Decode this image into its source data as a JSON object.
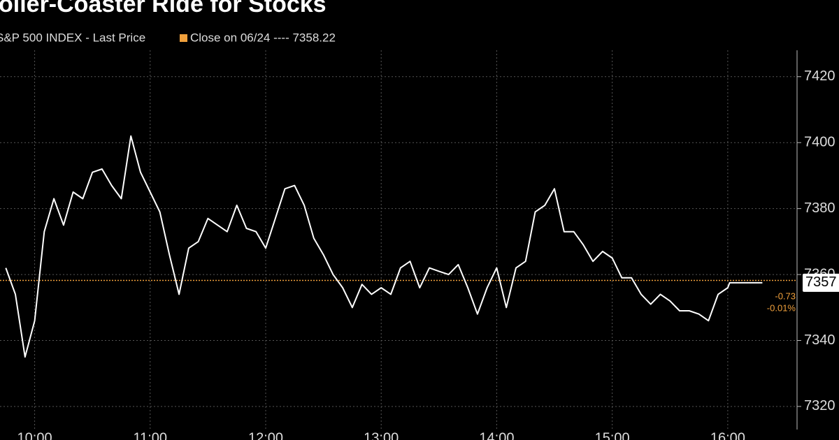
{
  "chart_data": {
    "type": "line",
    "title": "oller-Coaster Ride for Stocks",
    "x": [
      585,
      590,
      595,
      600,
      605,
      610,
      615,
      620,
      625,
      630,
      635,
      640,
      645,
      650,
      655,
      660,
      665,
      670,
      675,
      680,
      685,
      690,
      695,
      700,
      705,
      710,
      715,
      720,
      725,
      730,
      735,
      740,
      745,
      750,
      755,
      760,
      765,
      770,
      775,
      780,
      785,
      790,
      795,
      800,
      805,
      810,
      815,
      820,
      825,
      830,
      835,
      840,
      845,
      850,
      855,
      860,
      865,
      870,
      875,
      880,
      885,
      890,
      895,
      900,
      905,
      910,
      915,
      920,
      925,
      930,
      935,
      940,
      945,
      950,
      955,
      960,
      961,
      978
    ],
    "series": [
      {
        "name": "S&P 500 INDEX - Last Price",
        "color": "#ffffff",
        "values": [
          7362,
          7354,
          7335,
          7346,
          7373,
          7383,
          7375,
          7385,
          7383,
          7391,
          7392,
          7387,
          7383,
          7402,
          7391,
          7385,
          7379,
          7366,
          7354,
          7368,
          7370,
          7377,
          7375,
          7373,
          7381,
          7374,
          7373,
          7368,
          7377,
          7386,
          7387,
          7381,
          7371,
          7366,
          7360,
          7356,
          7350,
          7357,
          7354,
          7356,
          7354,
          7362,
          7364,
          7356,
          7362,
          7361,
          7360,
          7363,
          7356,
          7348,
          7356,
          7362,
          7350,
          7362,
          7364,
          7379,
          7381,
          7386,
          7373,
          7373,
          7369,
          7364,
          7367,
          7365,
          7359,
          7359,
          7354,
          7351,
          7354,
          7352,
          7349,
          7349,
          7348,
          7346,
          7354,
          7356,
          7357.49,
          7357.49
        ]
      }
    ],
    "close_line": {
      "label": "Close on 06/24 ---- 7358.22",
      "value": 7358.22,
      "color": "#f0a03c"
    },
    "last_price_label": "7357",
    "change_labels": [
      "-0.73",
      "-0.01%"
    ],
    "xlim": [
      582,
      996
    ],
    "ylim": [
      7313,
      7428
    ],
    "xticks": [
      {
        "value": 600,
        "label": "10:00"
      },
      {
        "value": 660,
        "label": "11:00"
      },
      {
        "value": 720,
        "label": "12:00"
      },
      {
        "value": 780,
        "label": "13:00"
      },
      {
        "value": 840,
        "label": "14:00"
      },
      {
        "value": 900,
        "label": "15:00"
      },
      {
        "value": 960,
        "label": "16:00"
      }
    ],
    "yticks": [
      7320,
      7340,
      7360,
      7380,
      7400,
      7420
    ],
    "grid": true
  }
}
